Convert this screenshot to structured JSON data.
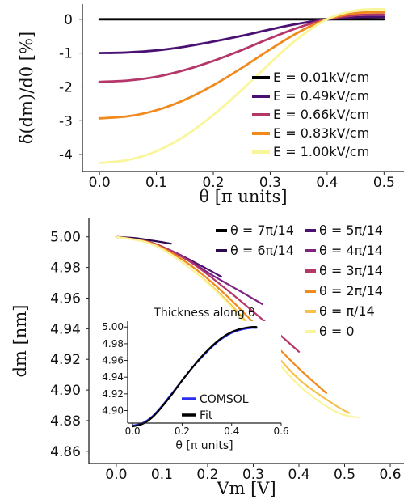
{
  "chart_data": [
    {
      "type": "line",
      "xlabel": "θ [π units]",
      "ylabel": "δ(dm)/d0 [%]",
      "xlim": [
        -0.03,
        0.535
      ],
      "ylim": [
        -4.5,
        0.45
      ],
      "xticks": [
        "0.0",
        "0.1",
        "0.2",
        "0.3",
        "0.4",
        "0.5"
      ],
      "yticks": [
        "0",
        "-1",
        "-2",
        "-3",
        "-4"
      ],
      "legend_position": "right",
      "series": [
        {
          "name": "E = 0.01kV/cm",
          "color": "#000000",
          "x": [
            0,
            0.05,
            0.1,
            0.15,
            0.2,
            0.25,
            0.3,
            0.35,
            0.4,
            0.45,
            0.5
          ],
          "y": [
            0,
            0,
            0,
            0,
            0,
            0,
            0,
            0,
            0,
            0,
            0
          ]
        },
        {
          "name": "E = 0.49kV/cm",
          "color": "#4a1072",
          "x": [
            0,
            0.05,
            0.1,
            0.15,
            0.2,
            0.25,
            0.3,
            0.35,
            0.4,
            0.45,
            0.5
          ],
          "y": [
            -1.0,
            -0.98,
            -0.92,
            -0.81,
            -0.66,
            -0.49,
            -0.3,
            -0.13,
            0.0,
            0.06,
            0.07
          ]
        },
        {
          "name": "E = 0.66kV/cm",
          "color": "#b5376a",
          "x": [
            0,
            0.05,
            0.1,
            0.15,
            0.2,
            0.25,
            0.3,
            0.35,
            0.4,
            0.45,
            0.5
          ],
          "y": [
            -1.85,
            -1.81,
            -1.7,
            -1.5,
            -1.23,
            -0.91,
            -0.56,
            -0.24,
            0.0,
            0.12,
            0.14
          ]
        },
        {
          "name": "E = 0.83kV/cm",
          "color": "#f08a1c",
          "x": [
            0,
            0.05,
            0.1,
            0.15,
            0.2,
            0.25,
            0.3,
            0.35,
            0.4,
            0.45,
            0.5
          ],
          "y": [
            -2.93,
            -2.87,
            -2.69,
            -2.38,
            -1.95,
            -1.44,
            -0.89,
            -0.38,
            0.0,
            0.18,
            0.21
          ]
        },
        {
          "name": "E = 1.00kV/cm",
          "color": "#faf59a",
          "x": [
            0,
            0.05,
            0.1,
            0.15,
            0.2,
            0.25,
            0.3,
            0.35,
            0.4,
            0.45,
            0.5
          ],
          "y": [
            -4.25,
            -4.16,
            -3.9,
            -3.45,
            -2.83,
            -2.09,
            -1.29,
            -0.55,
            0.0,
            0.26,
            0.3
          ]
        }
      ]
    },
    {
      "type": "line",
      "xlabel": "Vm [V]",
      "ylabel": "dm [nm]",
      "xlim": [
        -0.06,
        0.63
      ],
      "ylim": [
        4.852,
        5.012
      ],
      "xticks": [
        "0.0",
        "0.1",
        "0.2",
        "0.3",
        "0.4",
        "0.5",
        "0.6"
      ],
      "yticks": [
        "5.00",
        "4.98",
        "4.96",
        "4.94",
        "4.92",
        "4.90",
        "4.88",
        "4.86"
      ],
      "legend_position": "top-right",
      "series": [
        {
          "name": "θ = 7π/14",
          "color": "#000000",
          "x": [
            0,
            0.002,
            0.004,
            0.006
          ],
          "y": [
            5.0,
            4.9999,
            4.9998,
            4.9997
          ]
        },
        {
          "name": "θ = 6π/14",
          "color": "#2b0a4d",
          "x": [
            0,
            0.04,
            0.08,
            0.12
          ],
          "y": [
            5.0,
            4.9992,
            4.9975,
            4.9955
          ]
        },
        {
          "name": "θ = 5π/14",
          "color": "#4a1072",
          "x": [
            0,
            0.06,
            0.12,
            0.18,
            0.23
          ],
          "y": [
            5.0,
            4.9975,
            4.991,
            4.982,
            4.974
          ]
        },
        {
          "name": "θ = 4π/14",
          "color": "#7d2380",
          "x": [
            0,
            0.07,
            0.14,
            0.21,
            0.28,
            0.32
          ],
          "y": [
            5.0,
            4.9965,
            4.988,
            4.975,
            4.963,
            4.956
          ]
        },
        {
          "name": "θ = 3π/14",
          "color": "#b5376a",
          "x": [
            0,
            0.08,
            0.16,
            0.24,
            0.32,
            0.4
          ],
          "y": [
            5.0,
            4.996,
            4.984,
            4.966,
            4.946,
            4.925
          ]
        },
        {
          "name": "θ = 2π/14",
          "color": "#f08a1c",
          "x": [
            0,
            0.08,
            0.16,
            0.24,
            0.32,
            0.4,
            0.46
          ],
          "y": [
            5.0,
            4.9955,
            4.982,
            4.962,
            4.938,
            4.914,
            4.898
          ]
        },
        {
          "name": "θ = π/14",
          "color": "#f7c04a",
          "x": [
            0,
            0.08,
            0.16,
            0.24,
            0.32,
            0.4,
            0.48,
            0.51
          ],
          "y": [
            5.0,
            4.995,
            4.98,
            4.959,
            4.933,
            4.907,
            4.89,
            4.885
          ]
        },
        {
          "name": "θ = 0",
          "color": "#faf59a",
          "x": [
            0,
            0.08,
            0.16,
            0.24,
            0.32,
            0.4,
            0.48,
            0.53
          ],
          "y": [
            5.0,
            4.995,
            4.98,
            4.958,
            4.93,
            4.903,
            4.886,
            4.882
          ]
        }
      ]
    },
    {
      "type": "line",
      "title": "Thickness along θ",
      "xlabel": "θ [π units]",
      "ylabel": "",
      "xlim": [
        -0.02,
        0.6
      ],
      "ylim": [
        4.885,
        5.007
      ],
      "xticks": [
        "0.0",
        "0.2",
        "0.4",
        "0.6"
      ],
      "yticks": [
        "5.00",
        "4.98",
        "4.96",
        "4.94",
        "4.92",
        "4.90"
      ],
      "legend_position": "bottom-right",
      "series": [
        {
          "name": "COMSOL",
          "color": "#2a2df0",
          "x": [
            0,
            0.04,
            0.08,
            0.12,
            0.16,
            0.2,
            0.24,
            0.28,
            0.32,
            0.36,
            0.4,
            0.44,
            0.48,
            0.5
          ],
          "y": [
            4.882,
            4.885,
            4.893,
            4.906,
            4.921,
            4.936,
            4.951,
            4.964,
            4.976,
            4.986,
            4.993,
            4.997,
            4.999,
            4.999
          ]
        },
        {
          "name": "Fit",
          "color": "#000000",
          "x": [
            0,
            0.04,
            0.08,
            0.12,
            0.16,
            0.2,
            0.24,
            0.28,
            0.32,
            0.36,
            0.4,
            0.44,
            0.48,
            0.5
          ],
          "y": [
            4.881,
            4.884,
            4.892,
            4.905,
            4.92,
            4.936,
            4.951,
            4.965,
            4.977,
            4.987,
            4.994,
            4.998,
            5.0,
            5.0
          ]
        }
      ]
    }
  ]
}
